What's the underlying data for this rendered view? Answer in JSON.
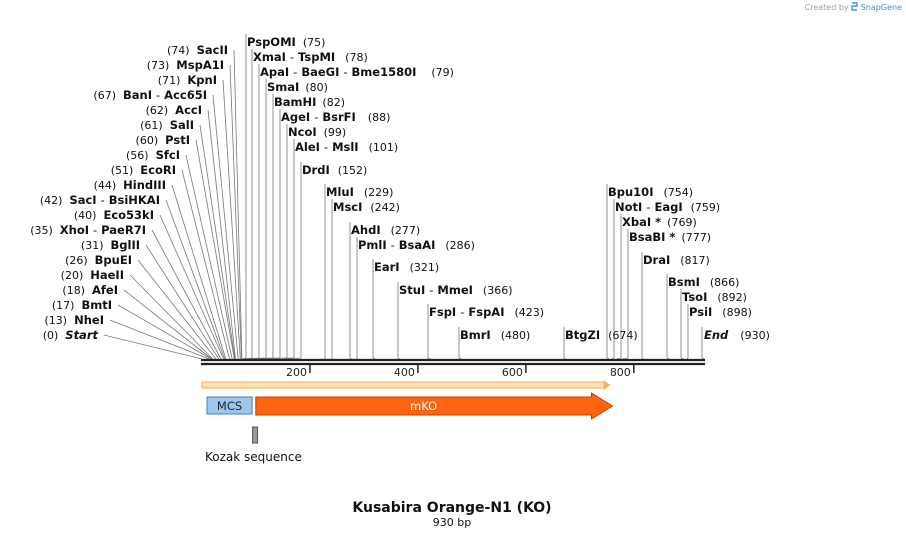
{
  "header": {
    "credit_prefix": "Created by",
    "credit_brand": "SnapGene"
  },
  "plasmid": {
    "name": "Kusabira Orange-N1 (KO)",
    "length_label": "930 bp",
    "length_bp": 930
  },
  "ruler": {
    "ticks": [
      200,
      400,
      600,
      800
    ]
  },
  "features": [
    {
      "name": "MCS",
      "start": 1,
      "end": 91,
      "color": "#9cc8f0",
      "border": "#4a7fb0",
      "text_color": "#222222",
      "type": "box"
    },
    {
      "name": "mKO",
      "start": 97,
      "end": 753,
      "color": "#ff6310",
      "border": "#b84000",
      "text_color": "#ffffff",
      "type": "arrow"
    },
    {
      "name": "Kozak sequence",
      "start": 91,
      "end": 101,
      "color": "#999999",
      "border": "#555555",
      "text_color": "#111111",
      "type": "small"
    }
  ],
  "orf": {
    "start": 1,
    "end": 753,
    "color": "#f5b15a"
  },
  "sites": [
    {
      "names": [
        "Start"
      ],
      "pos": "0",
      "bp": 0,
      "italic": true
    },
    {
      "names": [
        "NheI"
      ],
      "pos": "13",
      "bp": 13
    },
    {
      "names": [
        "BmtI"
      ],
      "pos": "17",
      "bp": 17
    },
    {
      "names": [
        "AfeI"
      ],
      "pos": "18",
      "bp": 18
    },
    {
      "names": [
        "HaeII"
      ],
      "pos": "20",
      "bp": 20
    },
    {
      "names": [
        "BpuEI"
      ],
      "pos": "26",
      "bp": 26
    },
    {
      "names": [
        "BglII"
      ],
      "pos": "31",
      "bp": 31
    },
    {
      "names": [
        "XhoI",
        "PaeR7I"
      ],
      "pos": "35",
      "bp": 35
    },
    {
      "names": [
        "Eco53kI"
      ],
      "pos": "40",
      "bp": 40
    },
    {
      "names": [
        "SacI",
        "BsiHKAI"
      ],
      "pos": "42",
      "bp": 42
    },
    {
      "names": [
        "HindIII"
      ],
      "pos": "44",
      "bp": 44
    },
    {
      "names": [
        "EcoRI"
      ],
      "pos": "51",
      "bp": 51
    },
    {
      "names": [
        "SfcI"
      ],
      "pos": "56",
      "bp": 56
    },
    {
      "names": [
        "PstI"
      ],
      "pos": "60",
      "bp": 60
    },
    {
      "names": [
        "SalI"
      ],
      "pos": "61",
      "bp": 61
    },
    {
      "names": [
        "AccI"
      ],
      "pos": "62",
      "bp": 62
    },
    {
      "names": [
        "BanI",
        "Acc65I"
      ],
      "pos": "67",
      "bp": 67
    },
    {
      "names": [
        "KpnI"
      ],
      "pos": "71",
      "bp": 71
    },
    {
      "names": [
        "MspA1I"
      ],
      "pos": "73",
      "bp": 73
    },
    {
      "names": [
        "SacII"
      ],
      "pos": "74",
      "bp": 74
    },
    {
      "names": [
        "PspOMI"
      ],
      "pos": "75",
      "bp": 75
    },
    {
      "names": [
        "XmaI",
        "TspMI"
      ],
      "pos": "78",
      "bp": 78
    },
    {
      "names": [
        "ApaI",
        "BaeGI",
        "Bme1580I"
      ],
      "pos": "79",
      "bp": 79
    },
    {
      "names": [
        "SmaI"
      ],
      "pos": "80",
      "bp": 80
    },
    {
      "names": [
        "BamHI"
      ],
      "pos": "82",
      "bp": 82
    },
    {
      "names": [
        "AgeI",
        "BsrFI"
      ],
      "pos": "88",
      "bp": 88
    },
    {
      "names": [
        "NcoI"
      ],
      "pos": "99",
      "bp": 99
    },
    {
      "names": [
        "AleI",
        "MslI"
      ],
      "pos": "101",
      "bp": 101
    },
    {
      "names": [
        "DrdI"
      ],
      "pos": "152",
      "bp": 152
    },
    {
      "names": [
        "MluI"
      ],
      "pos": "229",
      "bp": 229
    },
    {
      "names": [
        "MscI"
      ],
      "pos": "242",
      "bp": 242
    },
    {
      "names": [
        "AhdI"
      ],
      "pos": "277",
      "bp": 277
    },
    {
      "names": [
        "PmlI",
        "BsaAI"
      ],
      "pos": "286",
      "bp": 286
    },
    {
      "names": [
        "EarI"
      ],
      "pos": "321",
      "bp": 321
    },
    {
      "names": [
        "StuI",
        "MmeI"
      ],
      "pos": "366",
      "bp": 366
    },
    {
      "names": [
        "FspI",
        "FspAI"
      ],
      "pos": "423",
      "bp": 423
    },
    {
      "names": [
        "BmrI"
      ],
      "pos": "480",
      "bp": 480
    },
    {
      "names": [
        "BtgZI"
      ],
      "pos": "674",
      "bp": 674
    },
    {
      "names": [
        "Bpu10I"
      ],
      "pos": "754",
      "bp": 754
    },
    {
      "names": [
        "NotI",
        "EagI"
      ],
      "pos": "759",
      "bp": 759
    },
    {
      "names": [
        "XbaI *"
      ],
      "pos": "769",
      "bp": 769
    },
    {
      "names": [
        "BsaBI *"
      ],
      "pos": "777",
      "bp": 777
    },
    {
      "names": [
        "DraI"
      ],
      "pos": "817",
      "bp": 817
    },
    {
      "names": [
        "BsmI"
      ],
      "pos": "866",
      "bp": 866
    },
    {
      "names": [
        "TsoI"
      ],
      "pos": "892",
      "bp": 892
    },
    {
      "names": [
        "PsiI"
      ],
      "pos": "898",
      "bp": 898
    },
    {
      "names": [
        "End"
      ],
      "pos": "930",
      "bp": 930,
      "italic": true
    }
  ]
}
